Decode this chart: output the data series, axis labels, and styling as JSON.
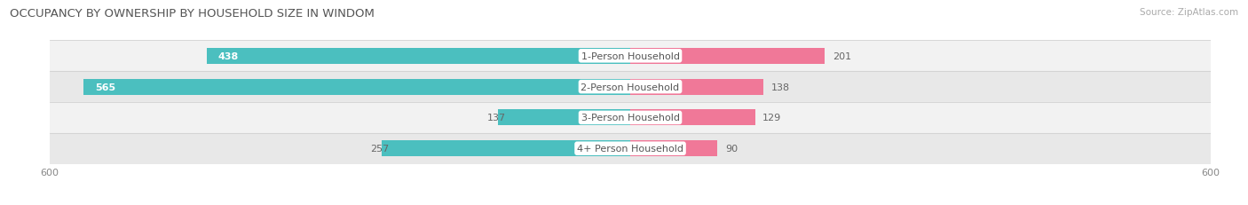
{
  "title": "OCCUPANCY BY OWNERSHIP BY HOUSEHOLD SIZE IN WINDOM",
  "source_text": "Source: ZipAtlas.com",
  "categories": [
    "1-Person Household",
    "2-Person Household",
    "3-Person Household",
    "4+ Person Household"
  ],
  "owner_values": [
    438,
    565,
    137,
    257
  ],
  "renter_values": [
    201,
    138,
    129,
    90
  ],
  "owner_color": "#4BBFBF",
  "renter_color": "#F07898",
  "xlim": 600,
  "title_fontsize": 9.5,
  "label_fontsize": 8,
  "tick_fontsize": 8,
  "bar_height": 0.52,
  "row_bg_even": "#F2F2F2",
  "row_bg_odd": "#E8E8E8",
  "label_inside_color": "white",
  "label_outside_color": "#666666",
  "category_color": "#555555",
  "tick_color": "#888888"
}
